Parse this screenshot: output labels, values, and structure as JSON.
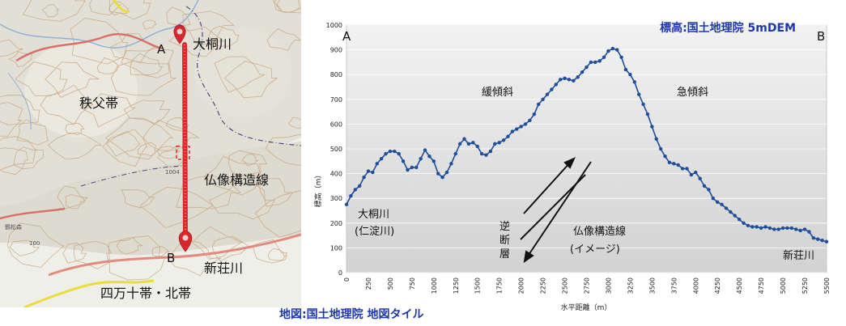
{
  "map": {
    "point_a_label": "A",
    "point_b_label": "B",
    "river_north": "大桐川",
    "river_south": "新荘川",
    "belt_north": "秩父帯",
    "belt_south": "四万十帯・北帯",
    "fault_line": "仏像構造線",
    "place_small": "鶴松森",
    "elev_small_1": "1004",
    "elev_small_2": "100",
    "colors": {
      "route": "#e0262a",
      "marker": "#d7282f",
      "contour": "#c8a27a",
      "road": "#d9716b",
      "boundary": "#4a4a8a"
    }
  },
  "credit": "地図:国土地理院 地図タイル",
  "chart_data": {
    "type": "line",
    "title": "標高:国土地理院 5mDEM",
    "xlabel": "水平距離（m）",
    "ylabel": "標高（m）",
    "xlim": [
      0,
      5500
    ],
    "ylim": [
      0,
      1000
    ],
    "x_ticks": [
      0,
      250,
      500,
      750,
      1000,
      1250,
      1500,
      1750,
      2000,
      2250,
      2500,
      2750,
      3000,
      3250,
      3500,
      3750,
      4000,
      4250,
      4500,
      4750,
      5000,
      5250,
      5500
    ],
    "y_ticks": [
      0,
      100,
      200,
      300,
      400,
      500,
      600,
      700,
      800,
      900,
      1000
    ],
    "grid": true,
    "endpoint_left": "A",
    "endpoint_right": "B",
    "annotations": {
      "gentle": "緩傾斜",
      "steep": "急傾斜",
      "river_left_1": "大桐川",
      "river_left_2": "(仁淀川)",
      "reverse_fault_1": "逆",
      "reverse_fault_2": "断",
      "reverse_fault_3": "層",
      "fault_1": "仏像構造線",
      "fault_2": "(イメージ)",
      "river_right": "新荘川"
    },
    "colors": {
      "line": "#1f4e9c",
      "fill_top": "#f2f2f2",
      "fill_bottom": "#d2d2d2"
    },
    "series": [
      {
        "x": [
          0,
          50,
          100,
          150,
          200,
          250,
          300,
          350,
          400,
          450,
          500,
          550,
          600,
          650,
          700,
          750,
          800,
          850,
          900,
          950,
          1000,
          1050,
          1100,
          1150,
          1200,
          1250,
          1300,
          1350,
          1400,
          1450,
          1500,
          1550,
          1600,
          1650,
          1700,
          1750,
          1800,
          1850,
          1900,
          1950,
          2000,
          2050,
          2100,
          2150,
          2200,
          2250,
          2300,
          2350,
          2400,
          2450,
          2500,
          2550,
          2600,
          2650,
          2700,
          2750,
          2800,
          2850,
          2900,
          2950,
          3000,
          3050,
          3100,
          3150,
          3200,
          3250,
          3300,
          3350,
          3400,
          3450,
          3500,
          3550,
          3600,
          3650,
          3700,
          3750,
          3800,
          3850,
          3900,
          3950,
          4000,
          4050,
          4100,
          4150,
          4200,
          4250,
          4300,
          4350,
          4400,
          4450,
          4500,
          4550,
          4600,
          4650,
          4700,
          4750,
          4800,
          4850,
          4900,
          4950,
          5000,
          5050,
          5100,
          5150,
          5200,
          5250,
          5300,
          5350,
          5400,
          5450,
          5500
        ],
        "y": [
          275,
          310,
          335,
          350,
          385,
          410,
          405,
          440,
          460,
          480,
          490,
          490,
          480,
          450,
          415,
          425,
          425,
          460,
          495,
          470,
          450,
          400,
          385,
          405,
          440,
          480,
          520,
          540,
          520,
          525,
          510,
          480,
          475,
          490,
          520,
          525,
          535,
          550,
          570,
          580,
          590,
          600,
          615,
          640,
          680,
          700,
          720,
          740,
          760,
          780,
          785,
          780,
          775,
          790,
          810,
          830,
          850,
          850,
          855,
          870,
          895,
          905,
          900,
          870,
          820,
          800,
          770,
          720,
          680,
          640,
          590,
          540,
          500,
          470,
          445,
          440,
          435,
          420,
          420,
          395,
          405,
          380,
          350,
          335,
          300,
          285,
          275,
          260,
          245,
          230,
          215,
          200,
          190,
          185,
          185,
          180,
          185,
          180,
          175,
          175,
          180,
          180,
          180,
          175,
          170,
          175,
          165,
          140,
          135,
          130,
          125
        ]
      }
    ]
  }
}
